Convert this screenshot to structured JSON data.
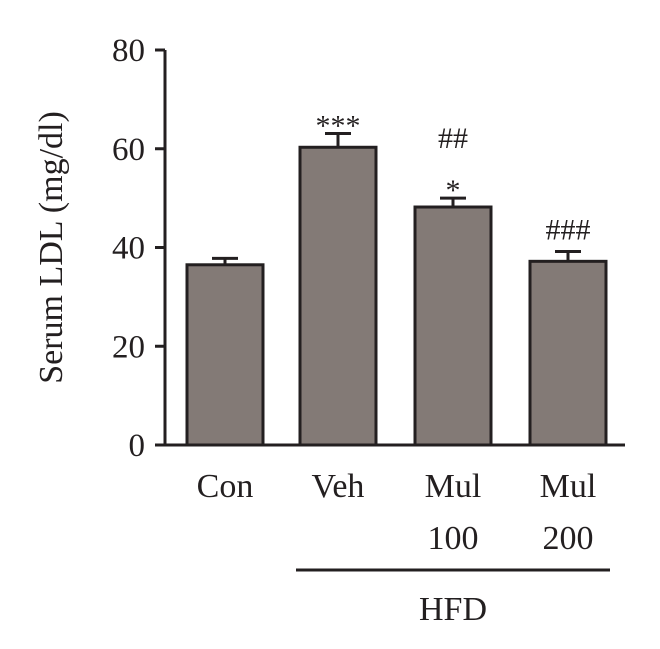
{
  "chart_data": {
    "type": "bar",
    "ylabel": "Serum LDL (mg/dl)",
    "xlabel": "",
    "ylim": [
      0,
      80
    ],
    "yticks": [
      0,
      20,
      40,
      60,
      80
    ],
    "categories": [
      [
        "Con"
      ],
      [
        "Veh"
      ],
      [
        "Mul",
        "100"
      ],
      [
        "Mul",
        "200"
      ]
    ],
    "values": [
      36.5,
      60.3,
      48.2,
      37.2
    ],
    "errors": [
      1.3,
      2.8,
      1.8,
      2.0
    ],
    "significance": [
      [],
      [
        "***"
      ],
      [
        "##",
        "*"
      ],
      [
        "###"
      ]
    ],
    "group": {
      "label": "HFD",
      "spans": [
        1,
        3
      ]
    },
    "colors": {
      "bar_fill": "#837a76",
      "bar_edge": "#231f20",
      "axis": "#231f20",
      "text": "#231f20"
    }
  }
}
